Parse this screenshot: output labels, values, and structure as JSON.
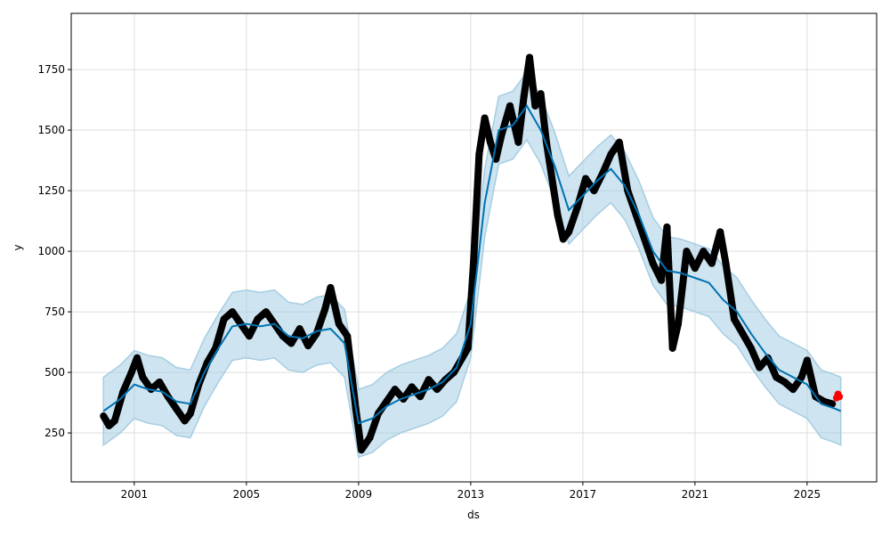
{
  "chart_data": {
    "type": "line",
    "title": "",
    "xlabel": "ds",
    "ylabel": "y",
    "xlim": [
      1998.75,
      2027.48
    ],
    "ylim": [
      48,
      1982
    ],
    "grid": true,
    "x_ticks": [
      "2001",
      "2005",
      "2009",
      "2013",
      "2017",
      "2021",
      "2025"
    ],
    "y_ticks": [
      "250",
      "500",
      "750",
      "1000",
      "1250",
      "1500",
      "1750"
    ],
    "colors": {
      "forecast": "#0072B2",
      "interval": "#a6cde3",
      "observed": "#000000",
      "future": "#ff0000"
    },
    "forecast": [
      [
        1999.9,
        340
      ],
      [
        2000.5,
        390
      ],
      [
        2001.0,
        450
      ],
      [
        2001.5,
        430
      ],
      [
        2002.0,
        420
      ],
      [
        2002.5,
        380
      ],
      [
        2003.0,
        370
      ],
      [
        2003.5,
        500
      ],
      [
        2004.0,
        600
      ],
      [
        2004.5,
        690
      ],
      [
        2005.0,
        700
      ],
      [
        2005.5,
        690
      ],
      [
        2006.0,
        700
      ],
      [
        2006.5,
        650
      ],
      [
        2007.0,
        640
      ],
      [
        2007.5,
        670
      ],
      [
        2008.0,
        680
      ],
      [
        2008.5,
        620
      ],
      [
        2009.0,
        290
      ],
      [
        2009.5,
        310
      ],
      [
        2010.0,
        360
      ],
      [
        2010.5,
        390
      ],
      [
        2011.0,
        410
      ],
      [
        2011.5,
        430
      ],
      [
        2012.0,
        460
      ],
      [
        2012.5,
        520
      ],
      [
        2013.0,
        700
      ],
      [
        2013.5,
        1200
      ],
      [
        2014.0,
        1500
      ],
      [
        2014.5,
        1520
      ],
      [
        2015.0,
        1600
      ],
      [
        2015.5,
        1500
      ],
      [
        2016.0,
        1350
      ],
      [
        2016.5,
        1170
      ],
      [
        2017.0,
        1230
      ],
      [
        2017.5,
        1290
      ],
      [
        2018.0,
        1340
      ],
      [
        2018.5,
        1270
      ],
      [
        2019.0,
        1150
      ],
      [
        2019.5,
        1000
      ],
      [
        2020.0,
        920
      ],
      [
        2020.5,
        910
      ],
      [
        2021.0,
        890
      ],
      [
        2021.5,
        870
      ],
      [
        2022.0,
        800
      ],
      [
        2022.5,
        750
      ],
      [
        2023.0,
        660
      ],
      [
        2023.5,
        580
      ],
      [
        2024.0,
        510
      ],
      [
        2024.5,
        480
      ],
      [
        2025.0,
        450
      ],
      [
        2025.5,
        370
      ],
      [
        2026.0,
        350
      ],
      [
        2026.2,
        340
      ]
    ],
    "interval_halfwidth": 140,
    "observed": [
      [
        1999.9,
        320
      ],
      [
        2000.1,
        280
      ],
      [
        2000.3,
        300
      ],
      [
        2000.6,
        420
      ],
      [
        2000.9,
        500
      ],
      [
        2001.1,
        560
      ],
      [
        2001.3,
        480
      ],
      [
        2001.6,
        430
      ],
      [
        2001.9,
        460
      ],
      [
        2002.2,
        400
      ],
      [
        2002.5,
        350
      ],
      [
        2002.8,
        300
      ],
      [
        2003.0,
        330
      ],
      [
        2003.3,
        450
      ],
      [
        2003.6,
        540
      ],
      [
        2003.9,
        600
      ],
      [
        2004.2,
        720
      ],
      [
        2004.5,
        750
      ],
      [
        2004.8,
        700
      ],
      [
        2005.1,
        650
      ],
      [
        2005.4,
        720
      ],
      [
        2005.7,
        750
      ],
      [
        2006.0,
        700
      ],
      [
        2006.3,
        650
      ],
      [
        2006.6,
        620
      ],
      [
        2006.9,
        680
      ],
      [
        2007.2,
        610
      ],
      [
        2007.5,
        660
      ],
      [
        2007.8,
        760
      ],
      [
        2008.0,
        850
      ],
      [
        2008.3,
        700
      ],
      [
        2008.6,
        650
      ],
      [
        2008.9,
        350
      ],
      [
        2009.1,
        180
      ],
      [
        2009.4,
        230
      ],
      [
        2009.7,
        330
      ],
      [
        2010.0,
        380
      ],
      [
        2010.3,
        430
      ],
      [
        2010.6,
        390
      ],
      [
        2010.9,
        440
      ],
      [
        2011.2,
        400
      ],
      [
        2011.5,
        470
      ],
      [
        2011.8,
        430
      ],
      [
        2012.1,
        470
      ],
      [
        2012.4,
        500
      ],
      [
        2012.7,
        560
      ],
      [
        2012.9,
        600
      ],
      [
        2013.1,
        950
      ],
      [
        2013.3,
        1400
      ],
      [
        2013.5,
        1550
      ],
      [
        2013.7,
        1450
      ],
      [
        2013.9,
        1380
      ],
      [
        2014.1,
        1480
      ],
      [
        2014.4,
        1600
      ],
      [
        2014.7,
        1450
      ],
      [
        2014.9,
        1640
      ],
      [
        2015.1,
        1800
      ],
      [
        2015.3,
        1600
      ],
      [
        2015.5,
        1650
      ],
      [
        2015.7,
        1450
      ],
      [
        2015.9,
        1300
      ],
      [
        2016.1,
        1150
      ],
      [
        2016.3,
        1050
      ],
      [
        2016.5,
        1080
      ],
      [
        2016.8,
        1180
      ],
      [
        2017.1,
        1300
      ],
      [
        2017.4,
        1250
      ],
      [
        2017.7,
        1320
      ],
      [
        2018.0,
        1400
      ],
      [
        2018.3,
        1450
      ],
      [
        2018.6,
        1250
      ],
      [
        2018.9,
        1150
      ],
      [
        2019.2,
        1050
      ],
      [
        2019.5,
        950
      ],
      [
        2019.8,
        880
      ],
      [
        2020.0,
        1100
      ],
      [
        2020.2,
        600
      ],
      [
        2020.4,
        700
      ],
      [
        2020.7,
        1000
      ],
      [
        2021.0,
        930
      ],
      [
        2021.3,
        1000
      ],
      [
        2021.6,
        950
      ],
      [
        2021.9,
        1080
      ],
      [
        2022.1,
        950
      ],
      [
        2022.4,
        720
      ],
      [
        2022.7,
        660
      ],
      [
        2023.0,
        600
      ],
      [
        2023.3,
        520
      ],
      [
        2023.6,
        560
      ],
      [
        2023.9,
        480
      ],
      [
        2024.2,
        460
      ],
      [
        2024.5,
        430
      ],
      [
        2024.8,
        480
      ],
      [
        2025.0,
        550
      ],
      [
        2025.3,
        400
      ],
      [
        2025.6,
        380
      ],
      [
        2025.9,
        370
      ]
    ],
    "future_observed": [
      [
        2026.05,
        395
      ],
      [
        2026.1,
        410
      ],
      [
        2026.15,
        400
      ]
    ]
  }
}
